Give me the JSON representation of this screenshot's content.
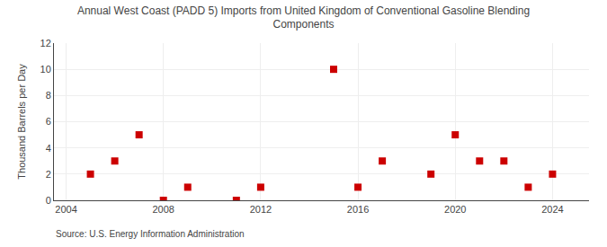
{
  "chart_data": {
    "type": "scatter",
    "title": "Annual West Coast (PADD 5) Imports from United Kingdom of Conventional Gasoline Blending\nComponents",
    "ylabel": "Thousand Barrels per Day",
    "source": "Source: U.S. Energy Information Administration",
    "x": [
      2005,
      2006,
      2007,
      2008,
      2009,
      2011,
      2012,
      2015,
      2016,
      2017,
      2019,
      2020,
      2021,
      2022,
      2023,
      2024
    ],
    "values": [
      2,
      3,
      5,
      0,
      1,
      0,
      1,
      10,
      1,
      3,
      2,
      5,
      3,
      3,
      1,
      2
    ],
    "color": "#cc0000",
    "marker": "square",
    "xlim": [
      2003.5,
      2025.5
    ],
    "xticks": [
      2004,
      2008,
      2012,
      2016,
      2020,
      2024
    ],
    "ylim": [
      0,
      12
    ],
    "yticks": [
      0,
      2,
      4,
      6,
      8,
      10,
      12
    ],
    "grid": true
  }
}
